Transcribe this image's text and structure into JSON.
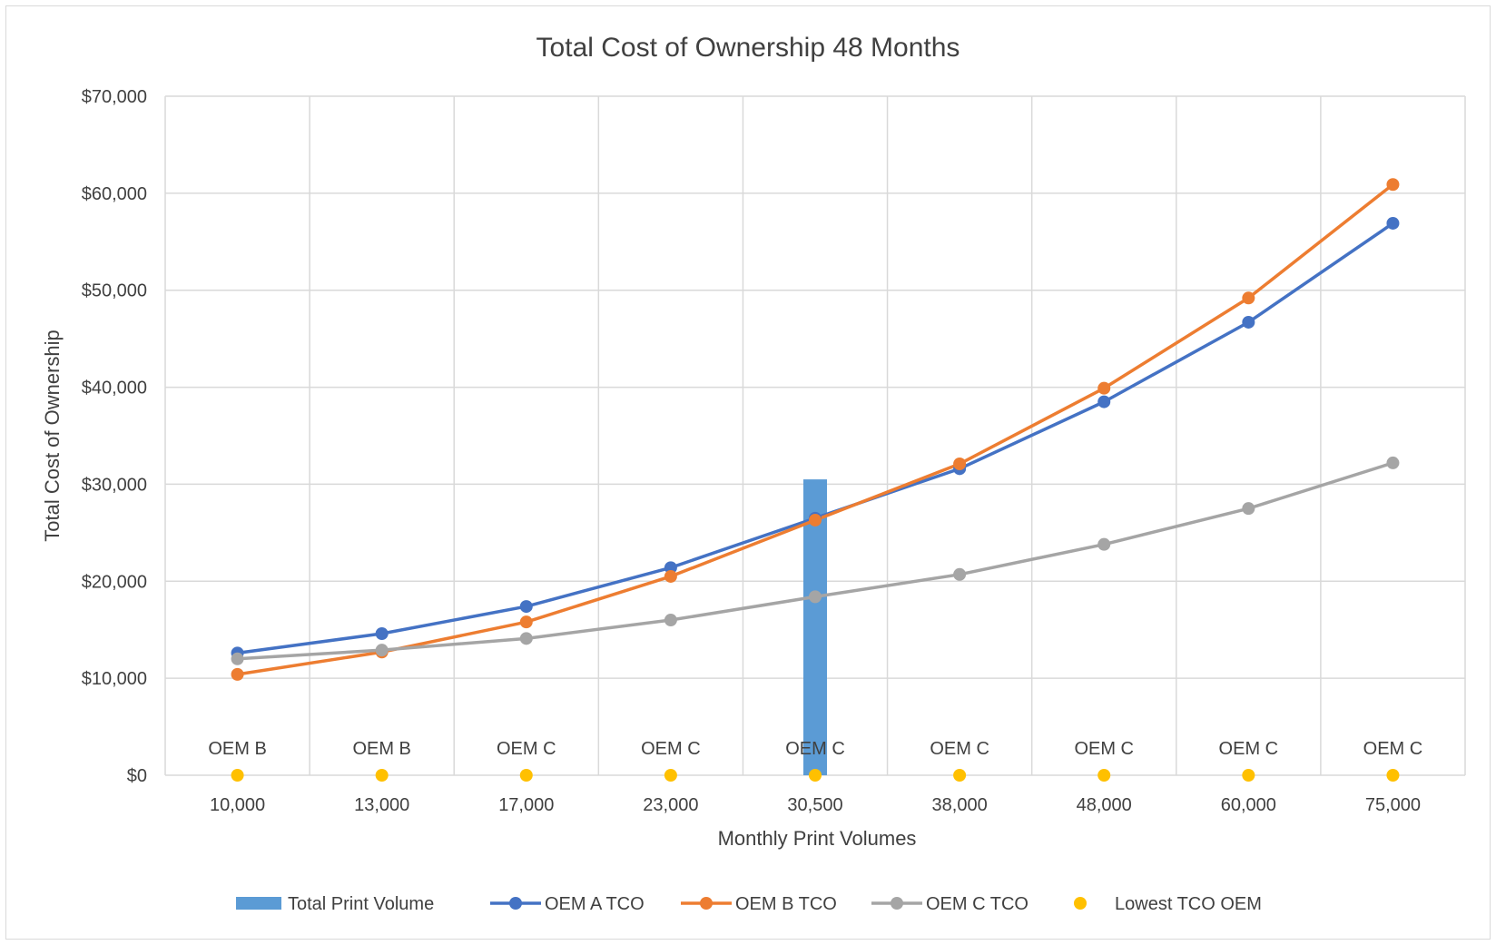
{
  "chart_data": {
    "type": "line",
    "title": "Total Cost of Ownership 48 Months",
    "xlabel": "Monthly Print Volumes",
    "ylabel": "Total Cost of Ownership",
    "categories": [
      "10,000",
      "13,000",
      "17,000",
      "23,000",
      "30,500",
      "38,000",
      "48,000",
      "60,000",
      "75,000"
    ],
    "y_ticks": [
      "$0",
      "$10,000",
      "$20,000",
      "$30,000",
      "$40,000",
      "$50,000",
      "$60,000",
      "$70,000"
    ],
    "ylim": [
      0,
      70000
    ],
    "grid": true,
    "legend_position": "bottom",
    "bar_series": {
      "name": "Total Print Volume",
      "color": "#5b9bd5",
      "values": [
        null,
        null,
        null,
        null,
        30500,
        null,
        null,
        null,
        null
      ]
    },
    "series": [
      {
        "name": "OEM A TCO",
        "color": "#4472c4",
        "values": [
          12600,
          14600,
          17400,
          21400,
          26500,
          31600,
          38500,
          46700,
          56900
        ]
      },
      {
        "name": "OEM B TCO",
        "color": "#ed7d31",
        "values": [
          10400,
          12700,
          15800,
          20500,
          26300,
          32100,
          39900,
          49200,
          60900
        ]
      },
      {
        "name": "OEM C TCO",
        "color": "#a5a5a5",
        "values": [
          12000,
          12900,
          14100,
          16000,
          18400,
          20700,
          23800,
          27500,
          32200
        ]
      }
    ],
    "marker_series": {
      "name": "Lowest TCO OEM",
      "color": "#ffc000",
      "values": [
        0,
        0,
        0,
        0,
        0,
        0,
        0,
        0,
        0
      ],
      "labels": [
        "OEM B",
        "OEM B",
        "OEM C",
        "OEM C",
        "OEM C",
        "OEM C",
        "OEM C",
        "OEM C",
        "OEM C"
      ]
    },
    "legend": [
      "Total Print Volume",
      "OEM A TCO",
      "OEM B TCO",
      "OEM C TCO",
      "Lowest TCO OEM"
    ]
  }
}
